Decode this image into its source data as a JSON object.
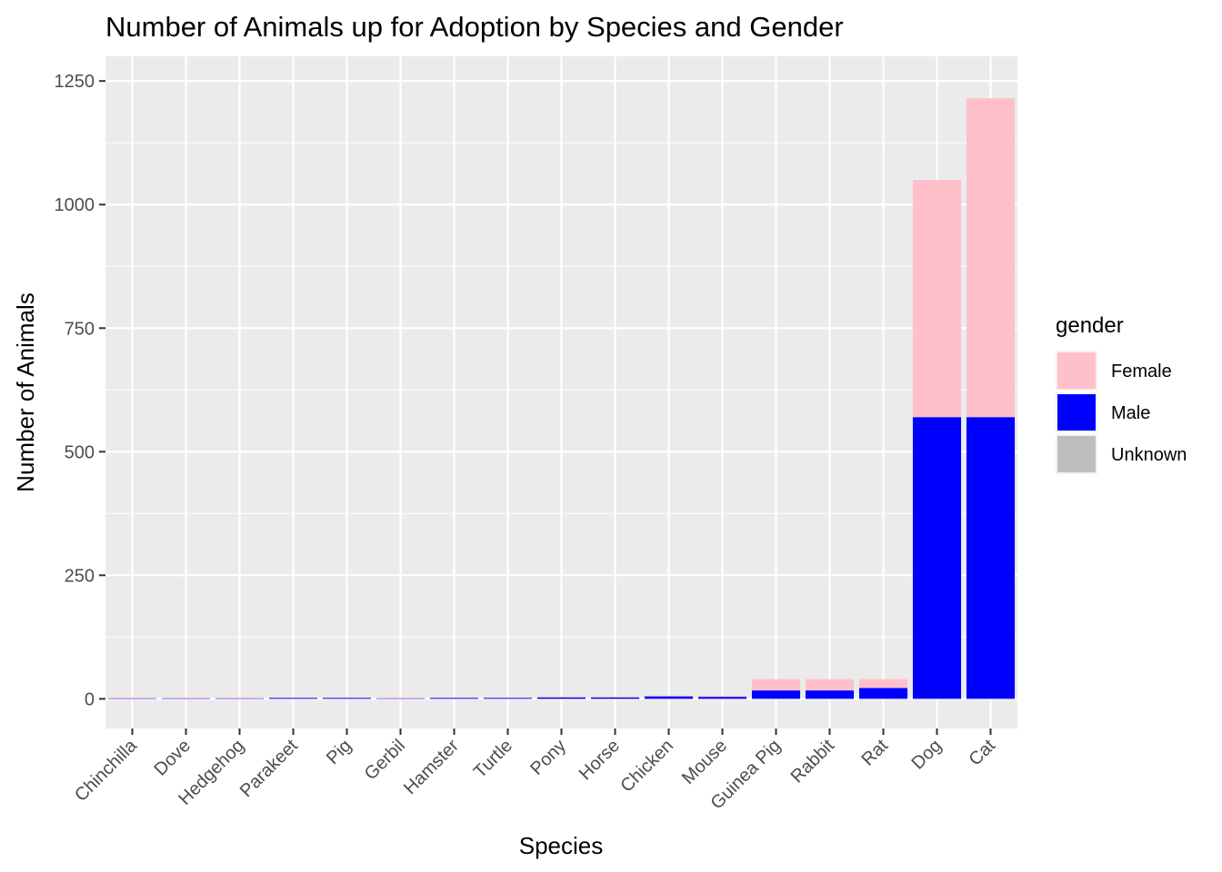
{
  "chart_data": {
    "type": "bar",
    "stacked": true,
    "title": "Number of Animals up for Adoption by Species and Gender",
    "xlabel": "Species",
    "ylabel": "Number of Animals",
    "ylim": [
      -60,
      1300
    ],
    "yticks": [
      0,
      250,
      500,
      750,
      1000,
      1250
    ],
    "grid": true,
    "legend": {
      "title": "gender",
      "position": "right"
    },
    "categories": [
      "Chinchilla",
      "Dove",
      "Hedgehog",
      "Parakeet",
      "Pig",
      "Gerbil",
      "Hamster",
      "Turtle",
      "Pony",
      "Horse",
      "Chicken",
      "Mouse",
      "Guinea Pig",
      "Rabbit",
      "Rat",
      "Dog",
      "Cat"
    ],
    "series": [
      {
        "name": "Male",
        "color": "#0000ff",
        "values": [
          1,
          1,
          1,
          2,
          2,
          1,
          2,
          2,
          3,
          3,
          5,
          4,
          17,
          17,
          22,
          570,
          570
        ]
      },
      {
        "name": "Female",
        "color": "#ffc0cb",
        "values": [
          2,
          2,
          2,
          1,
          1,
          2,
          1,
          1,
          1,
          1,
          1,
          2,
          23,
          23,
          18,
          480,
          645
        ]
      },
      {
        "name": "Unknown",
        "color": "#bebebe",
        "values": [
          0,
          0,
          0,
          0,
          0,
          0,
          0,
          0,
          0,
          0,
          0,
          0,
          0,
          0,
          0,
          0,
          0
        ]
      }
    ]
  }
}
